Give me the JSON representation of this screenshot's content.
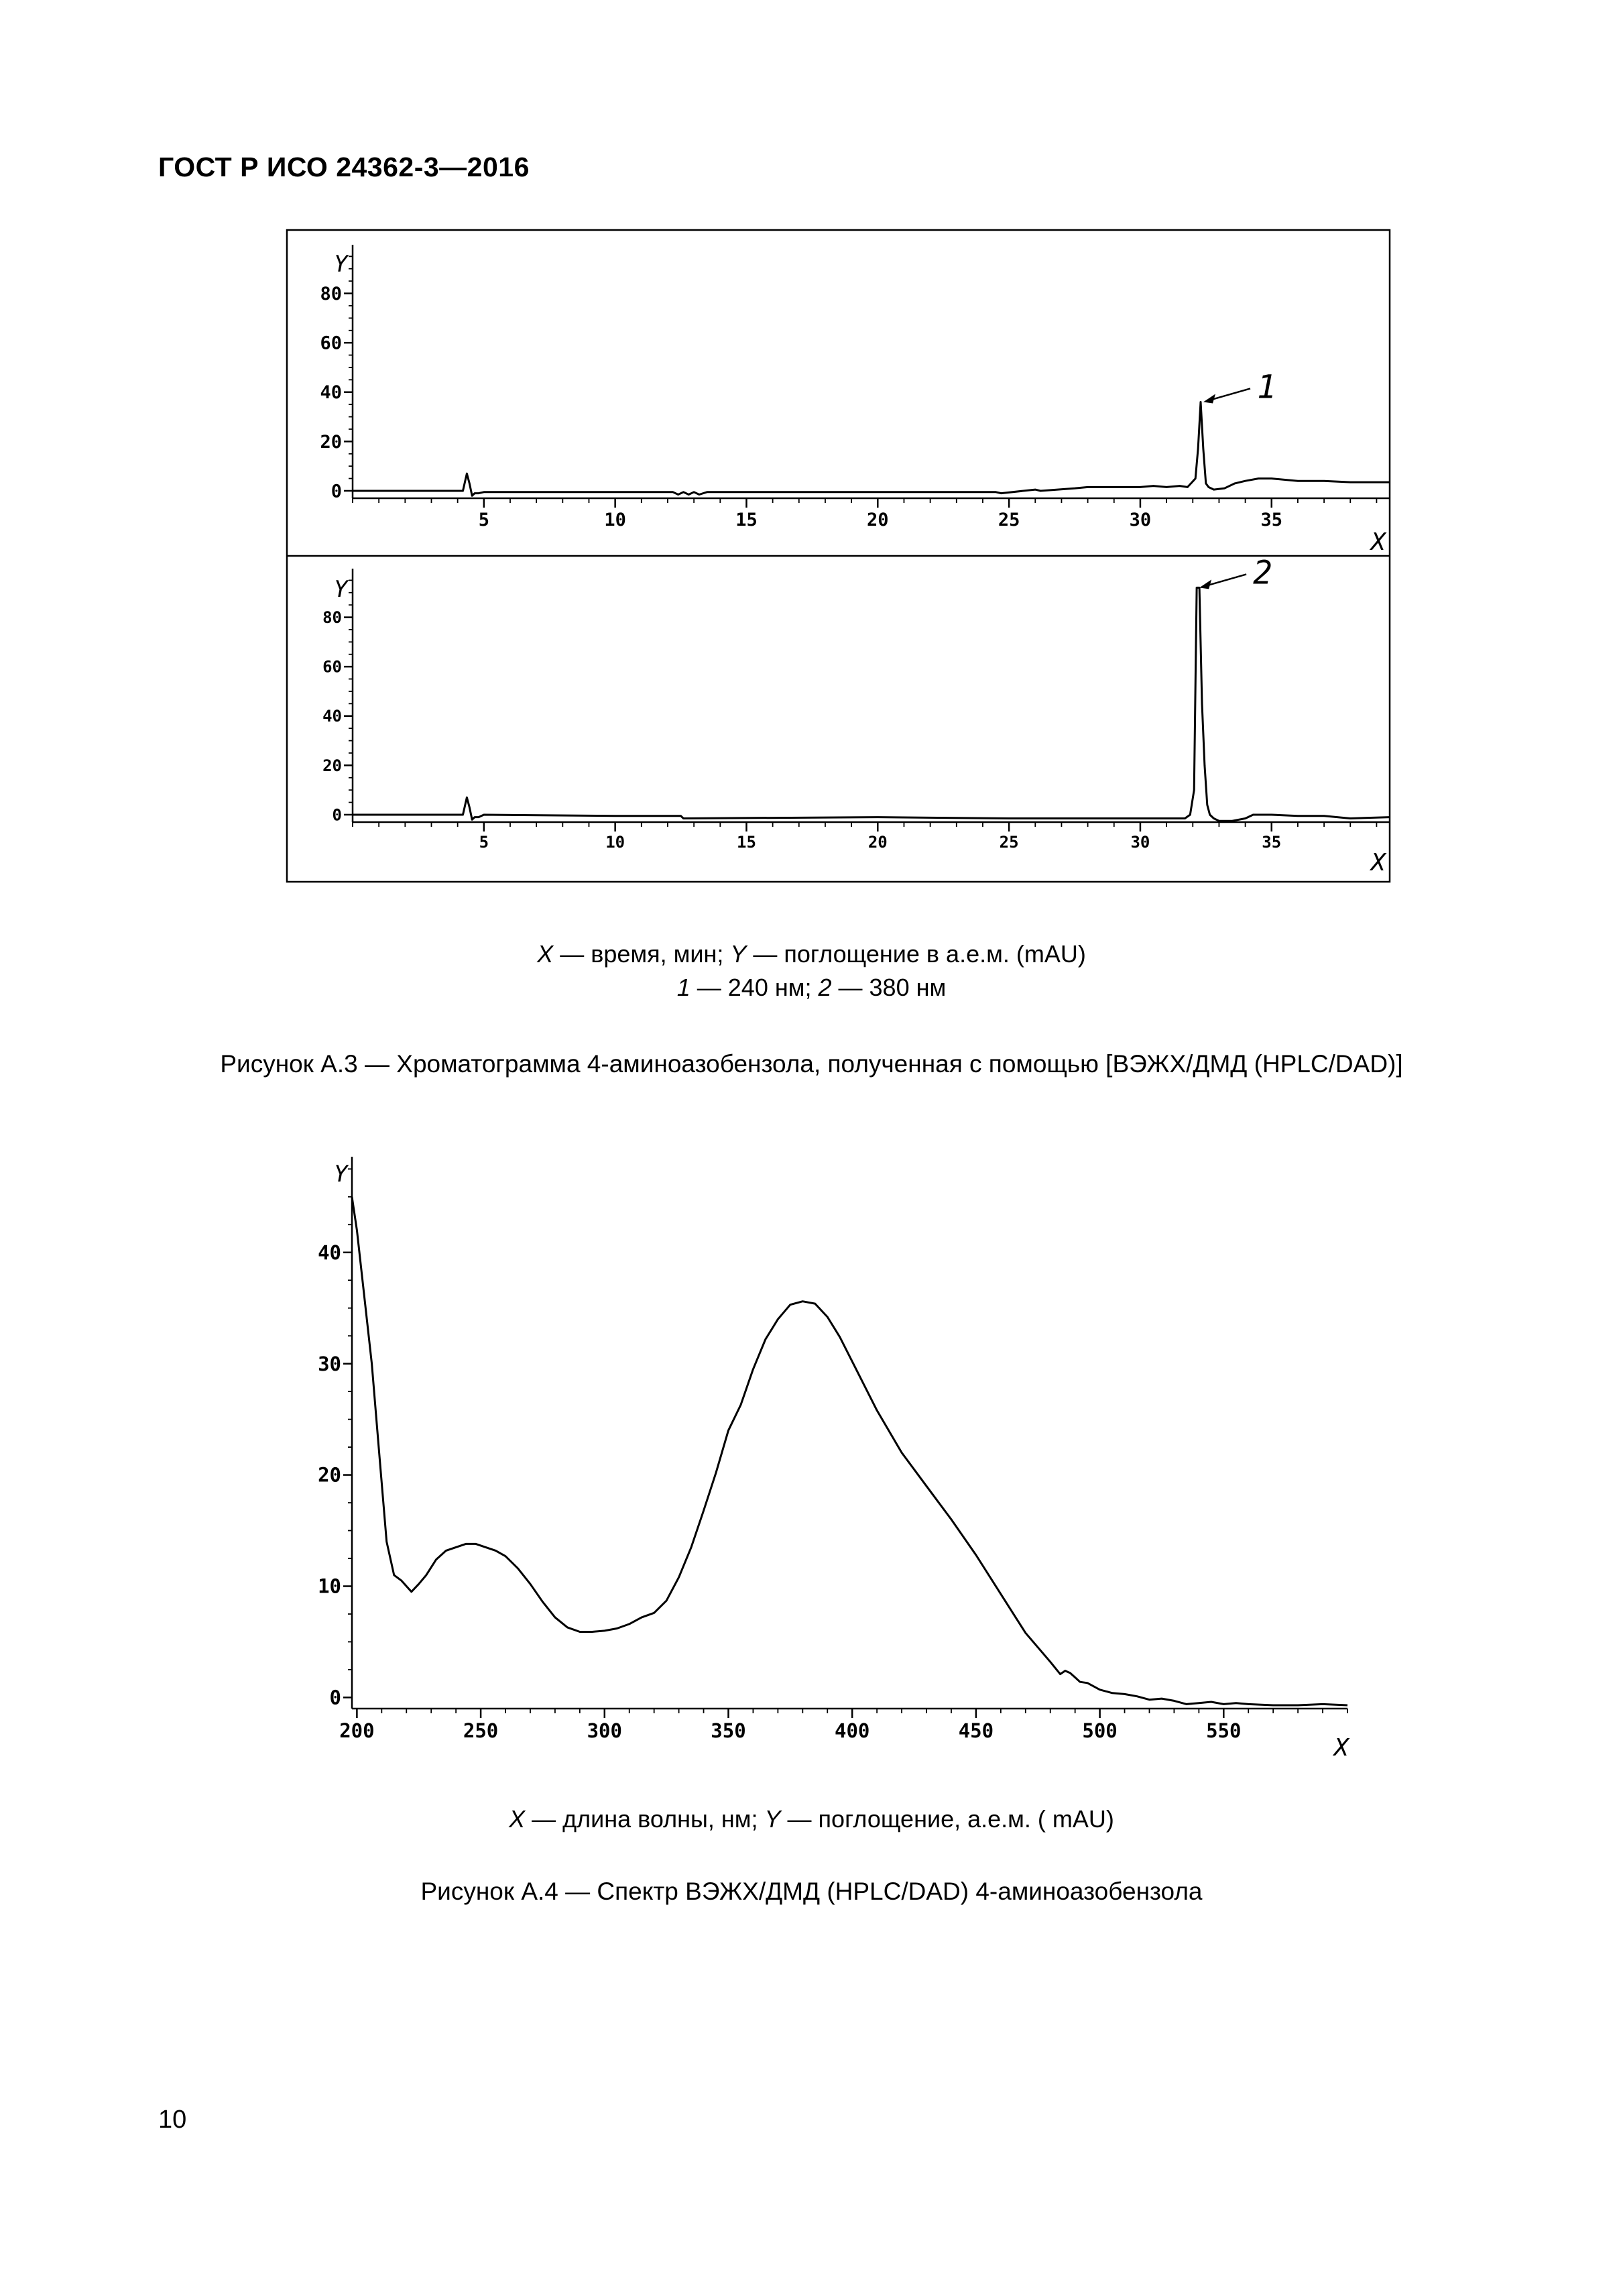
{
  "header": {
    "doc_id": "ГОСТ  Р ИСО 24362-3—2016"
  },
  "figure_a3": {
    "legend_line1": {
      "x": "X",
      "x_desc": " — время, мин; ",
      "y": "Y",
      "y_desc": " — поглощение в а.е.м. (mAU)"
    },
    "legend_line2": {
      "n1": "1",
      "n1_desc": "  —  240 нм; ",
      "n2": "2",
      "n2_desc": " — 380 нм"
    },
    "caption": "Рисунок А.3 — Хроматограмма 4-аминоазобензола, полученная с помощью [ВЭЖХ/ДМД (HPLC/DAD)]"
  },
  "figure_a4": {
    "legend": {
      "x": "X",
      "x_desc": "  —  длина волны, нм; ",
      "y": "Y",
      "y_desc": "  —  поглощение,  а.е.м. ( mAU)"
    },
    "caption": "Рисунок А.4 — Спектр ВЭЖХ/ДМД (HPLC/DAD) 4-аминоазобензола"
  },
  "page_number": "10",
  "chart_data": [
    {
      "type": "line",
      "title": "",
      "xlabel": "X",
      "ylabel": "Y",
      "peak_label": "1",
      "xlim": [
        0,
        39.5
      ],
      "ylim": [
        -3,
        97
      ],
      "x_ticks": [
        5,
        10,
        15,
        20,
        25,
        30,
        35
      ],
      "y_ticks": [
        0,
        20,
        40,
        60,
        80
      ],
      "series": [
        {
          "x": [
            0,
            4.2,
            4.35,
            4.45,
            4.55,
            4.65,
            4.8,
            5,
            8,
            12.2,
            12.4,
            12.6,
            12.8,
            13.0,
            13.2,
            13.5,
            18,
            20,
            23,
            24.5,
            24.7,
            26,
            26.2,
            27.5,
            28,
            30,
            30.5,
            31,
            31.5,
            31.8,
            32.1,
            32.2,
            32.3,
            32.4,
            32.5,
            32.6,
            32.8,
            33.2,
            33.6,
            34,
            34.5,
            35,
            36,
            37,
            38,
            39.5
          ],
          "y": [
            0,
            0,
            7,
            3,
            -2,
            -1,
            -1,
            -0.5,
            -0.5,
            -0.5,
            -1.5,
            -0.5,
            -1.5,
            -0.5,
            -1.5,
            -0.5,
            -0.5,
            -0.5,
            -0.5,
            -0.5,
            -1,
            0.5,
            0,
            1,
            1.5,
            1.5,
            2,
            1.5,
            2,
            1.5,
            5,
            17,
            36,
            17,
            3,
            1.5,
            0.5,
            1,
            3,
            4,
            5,
            5,
            4,
            4,
            3.5,
            3.5
          ]
        }
      ]
    },
    {
      "type": "line",
      "title": "",
      "xlabel": "X",
      "ylabel": "Y",
      "peak_label": "2",
      "xlim": [
        0,
        39.5
      ],
      "ylim": [
        -3,
        97
      ],
      "x_ticks": [
        5,
        10,
        15,
        20,
        25,
        30,
        35
      ],
      "y_ticks": [
        0,
        20,
        40,
        60,
        80
      ],
      "series": [
        {
          "x": [
            0,
            4.2,
            4.35,
            4.45,
            4.55,
            4.65,
            4.8,
            5,
            10,
            12.5,
            12.6,
            20,
            25,
            30,
            31.7,
            31.9,
            32.05,
            32.15,
            32.25,
            32.35,
            32.45,
            32.55,
            32.65,
            32.8,
            33.0,
            33.5,
            34.0,
            34.3,
            35,
            36,
            37,
            38,
            39.5
          ],
          "y": [
            0,
            0,
            7,
            3,
            -2,
            -1,
            -1,
            0,
            -0.5,
            -0.5,
            -1.5,
            -1,
            -1.5,
            -1.5,
            -1.5,
            0,
            10,
            92,
            92,
            45,
            20,
            4,
            0,
            -1.5,
            -2.5,
            -2.5,
            -1.5,
            0,
            0,
            -0.5,
            -0.5,
            -1.5,
            -1
          ]
        }
      ]
    },
    {
      "type": "line",
      "title": "",
      "xlabel": "X",
      "ylabel": "Y",
      "xlim": [
        198,
        600
      ],
      "ylim": [
        -1,
        48
      ],
      "x_ticks": [
        200,
        250,
        300,
        350,
        400,
        450,
        500,
        550
      ],
      "y_ticks": [
        0,
        10,
        20,
        30,
        40
      ],
      "series": [
        {
          "x": [
            198,
            200,
            203,
            206,
            209,
            212,
            215,
            218,
            220,
            222,
            225,
            228,
            232,
            236,
            240,
            244,
            248,
            252,
            256,
            260,
            265,
            270,
            275,
            280,
            285,
            290,
            295,
            300,
            305,
            310,
            315,
            320,
            325,
            330,
            335,
            340,
            345,
            350,
            355,
            360,
            365,
            370,
            375,
            380,
            385,
            390,
            395,
            400,
            410,
            420,
            430,
            440,
            450,
            460,
            470,
            480,
            484,
            486,
            488,
            490,
            492,
            495,
            500,
            505,
            510,
            515,
            520,
            525,
            530,
            535,
            540,
            545,
            550,
            555,
            560,
            570,
            580,
            590,
            600
          ],
          "y": [
            45,
            42,
            36,
            30,
            22,
            14,
            11,
            10.5,
            10,
            9.5,
            10.2,
            11,
            12.4,
            13.2,
            13.5,
            13.8,
            13.8,
            13.5,
            13.2,
            12.7,
            11.6,
            10.2,
            8.6,
            7.2,
            6.3,
            5.9,
            5.9,
            6.0,
            6.2,
            6.6,
            7.2,
            7.6,
            8.7,
            10.8,
            13.5,
            16.8,
            20.2,
            24.0,
            26.3,
            29.5,
            32.2,
            34.0,
            35.3,
            35.6,
            35.4,
            34.2,
            32.4,
            30.2,
            25.8,
            22.0,
            19.0,
            16.0,
            12.8,
            9.3,
            5.8,
            3.2,
            2.1,
            2.4,
            2.2,
            1.8,
            1.4,
            1.3,
            0.7,
            0.4,
            0.3,
            0.1,
            -0.2,
            -0.1,
            -0.3,
            -0.6,
            -0.5,
            -0.4,
            -0.6,
            -0.5,
            -0.6,
            -0.7,
            -0.7,
            -0.6,
            -0.7
          ]
        }
      ]
    }
  ]
}
